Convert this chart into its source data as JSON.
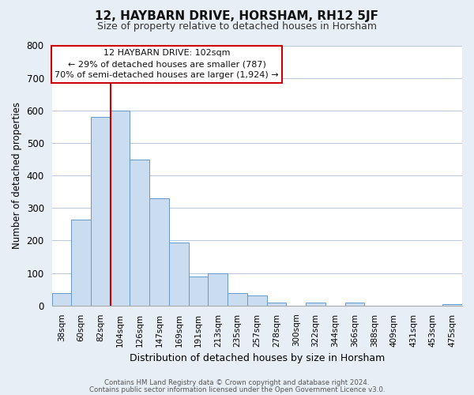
{
  "title": "12, HAYBARN DRIVE, HORSHAM, RH12 5JF",
  "subtitle": "Size of property relative to detached houses in Horsham",
  "xlabel": "Distribution of detached houses by size in Horsham",
  "ylabel": "Number of detached properties",
  "bar_labels": [
    "38sqm",
    "60sqm",
    "82sqm",
    "104sqm",
    "126sqm",
    "147sqm",
    "169sqm",
    "191sqm",
    "213sqm",
    "235sqm",
    "257sqm",
    "278sqm",
    "300sqm",
    "322sqm",
    "344sqm",
    "366sqm",
    "388sqm",
    "409sqm",
    "431sqm",
    "453sqm",
    "475sqm"
  ],
  "bar_values": [
    38,
    265,
    580,
    600,
    450,
    330,
    195,
    90,
    100,
    38,
    32,
    10,
    0,
    10,
    0,
    10,
    0,
    0,
    0,
    0,
    5
  ],
  "bar_color": "#c9dcf0",
  "bar_edge_color": "#6699cc",
  "vline_color": "#cc0000",
  "vline_x_index": 3,
  "annotation_text_line1": "12 HAYBARN DRIVE: 102sqm",
  "annotation_text_line2": "← 29% of detached houses are smaller (787)",
  "annotation_text_line3": "70% of semi-detached houses are larger (1,924) →",
  "annotation_box_color": "#ffffff",
  "annotation_box_edge": "#cc0000",
  "ylim": [
    0,
    800
  ],
  "yticks": [
    0,
    100,
    200,
    300,
    400,
    500,
    600,
    700,
    800
  ],
  "footer_line1": "Contains HM Land Registry data © Crown copyright and database right 2024.",
  "footer_line2": "Contains public sector information licensed under the Open Government Licence v3.0.",
  "background_color": "#e8eef5",
  "plot_bg_color": "#ffffff",
  "grid_color": "#b8c8dc",
  "title_fontsize": 11,
  "subtitle_fontsize": 9
}
